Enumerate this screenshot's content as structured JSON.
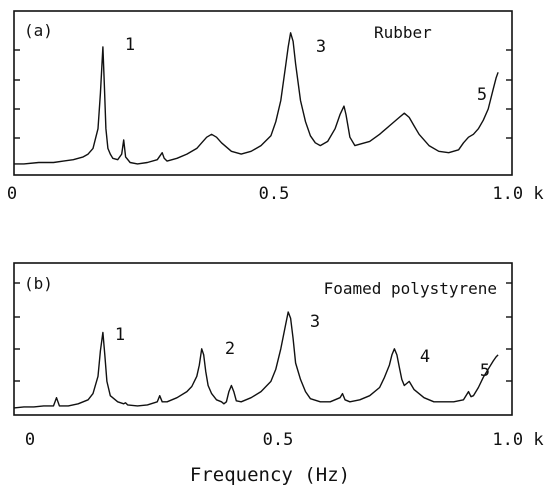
{
  "chart_data": [
    {
      "type": "line",
      "panel_label": "(a)",
      "title": "Rubber",
      "xlim": [
        0,
        1.0
      ],
      "x_tick_labels": [
        "0",
        "0.5",
        "1.0 k"
      ],
      "x_tick_values": [
        0,
        0.5,
        1.0
      ],
      "series": [
        {
          "x": [
            0.0,
            0.02,
            0.05,
            0.08,
            0.1,
            0.12,
            0.14,
            0.15,
            0.16,
            0.17,
            0.175,
            0.18,
            0.183,
            0.186,
            0.19,
            0.195,
            0.2,
            0.21,
            0.218,
            0.222,
            0.226,
            0.235,
            0.25,
            0.27,
            0.29,
            0.3,
            0.304,
            0.31,
            0.33,
            0.35,
            0.37,
            0.38,
            0.39,
            0.4,
            0.41,
            0.42,
            0.44,
            0.46,
            0.48,
            0.5,
            0.52,
            0.53,
            0.54,
            0.55,
            0.555,
            0.56,
            0.565,
            0.57,
            0.58,
            0.59,
            0.6,
            0.61,
            0.62,
            0.635,
            0.65,
            0.66,
            0.668,
            0.672,
            0.68,
            0.69,
            0.7,
            0.72,
            0.74,
            0.76,
            0.78,
            0.79,
            0.8,
            0.81,
            0.82,
            0.84,
            0.86,
            0.88,
            0.9,
            0.91,
            0.92,
            0.93,
            0.94,
            0.95,
            0.96,
            0.97,
            0.976,
            0.98
          ],
          "y": [
            0.05,
            0.05,
            0.06,
            0.06,
            0.07,
            0.08,
            0.1,
            0.12,
            0.16,
            0.3,
            0.55,
            0.88,
            0.6,
            0.3,
            0.16,
            0.12,
            0.09,
            0.08,
            0.12,
            0.22,
            0.1,
            0.06,
            0.05,
            0.06,
            0.08,
            0.13,
            0.09,
            0.07,
            0.09,
            0.12,
            0.16,
            0.2,
            0.24,
            0.26,
            0.24,
            0.2,
            0.14,
            0.12,
            0.14,
            0.18,
            0.25,
            0.35,
            0.5,
            0.75,
            0.88,
            0.98,
            0.92,
            0.76,
            0.5,
            0.35,
            0.25,
            0.2,
            0.18,
            0.21,
            0.3,
            0.4,
            0.46,
            0.4,
            0.24,
            0.18,
            0.19,
            0.21,
            0.26,
            0.32,
            0.38,
            0.41,
            0.38,
            0.32,
            0.26,
            0.18,
            0.14,
            0.13,
            0.15,
            0.2,
            0.24,
            0.26,
            0.3,
            0.36,
            0.44,
            0.58,
            0.66,
            0.7
          ]
        }
      ],
      "annotations": [
        {
          "text": "1",
          "x": 0.183
        },
        {
          "text": "3",
          "x": 0.56
        },
        {
          "text": "5",
          "x": 0.976
        }
      ]
    },
    {
      "type": "line",
      "panel_label": "(b)",
      "title": "Foamed polystyrene",
      "xlim": [
        0,
        1.0
      ],
      "x_tick_labels": [
        "0",
        "0.5",
        "1.0 k"
      ],
      "x_tick_values": [
        0,
        0.5,
        1.0
      ],
      "xlabel": "Frequency (Hz)",
      "series": [
        {
          "x": [
            0.0,
            0.02,
            0.04,
            0.06,
            0.08,
            0.086,
            0.092,
            0.11,
            0.13,
            0.15,
            0.16,
            0.17,
            0.175,
            0.18,
            0.184,
            0.188,
            0.195,
            0.21,
            0.222,
            0.226,
            0.23,
            0.25,
            0.27,
            0.29,
            0.295,
            0.3,
            0.31,
            0.33,
            0.35,
            0.36,
            0.37,
            0.375,
            0.38,
            0.384,
            0.388,
            0.393,
            0.4,
            0.41,
            0.42,
            0.425,
            0.43,
            0.435,
            0.44,
            0.445,
            0.45,
            0.46,
            0.48,
            0.5,
            0.52,
            0.53,
            0.54,
            0.55,
            0.555,
            0.56,
            0.565,
            0.57,
            0.58,
            0.59,
            0.6,
            0.62,
            0.64,
            0.66,
            0.665,
            0.67,
            0.68,
            0.7,
            0.72,
            0.74,
            0.75,
            0.76,
            0.765,
            0.77,
            0.775,
            0.78,
            0.785,
            0.79,
            0.8,
            0.81,
            0.83,
            0.85,
            0.87,
            0.89,
            0.91,
            0.92,
            0.925,
            0.93,
            0.94,
            0.95,
            0.96,
            0.97,
            0.976,
            0.98
          ],
          "y": [
            0.04,
            0.05,
            0.05,
            0.06,
            0.06,
            0.14,
            0.06,
            0.06,
            0.08,
            0.12,
            0.18,
            0.35,
            0.6,
            0.78,
            0.55,
            0.3,
            0.16,
            0.1,
            0.08,
            0.09,
            0.07,
            0.06,
            0.07,
            0.1,
            0.16,
            0.1,
            0.1,
            0.14,
            0.2,
            0.25,
            0.35,
            0.46,
            0.62,
            0.56,
            0.4,
            0.26,
            0.18,
            0.12,
            0.1,
            0.08,
            0.1,
            0.2,
            0.26,
            0.2,
            0.11,
            0.1,
            0.14,
            0.2,
            0.3,
            0.42,
            0.62,
            0.86,
            0.98,
            0.92,
            0.72,
            0.48,
            0.32,
            0.2,
            0.13,
            0.1,
            0.1,
            0.14,
            0.18,
            0.12,
            0.1,
            0.12,
            0.16,
            0.24,
            0.34,
            0.46,
            0.56,
            0.62,
            0.56,
            0.44,
            0.32,
            0.26,
            0.3,
            0.22,
            0.14,
            0.1,
            0.1,
            0.1,
            0.12,
            0.2,
            0.15,
            0.16,
            0.24,
            0.34,
            0.42,
            0.5,
            0.54,
            0.56
          ]
        }
      ],
      "annotations": [
        {
          "text": "1",
          "x": 0.18
        },
        {
          "text": "2",
          "x": 0.38
        },
        {
          "text": "3",
          "x": 0.555
        },
        {
          "text": "4",
          "x": 0.77
        },
        {
          "text": "5",
          "x": 0.976
        }
      ]
    }
  ]
}
